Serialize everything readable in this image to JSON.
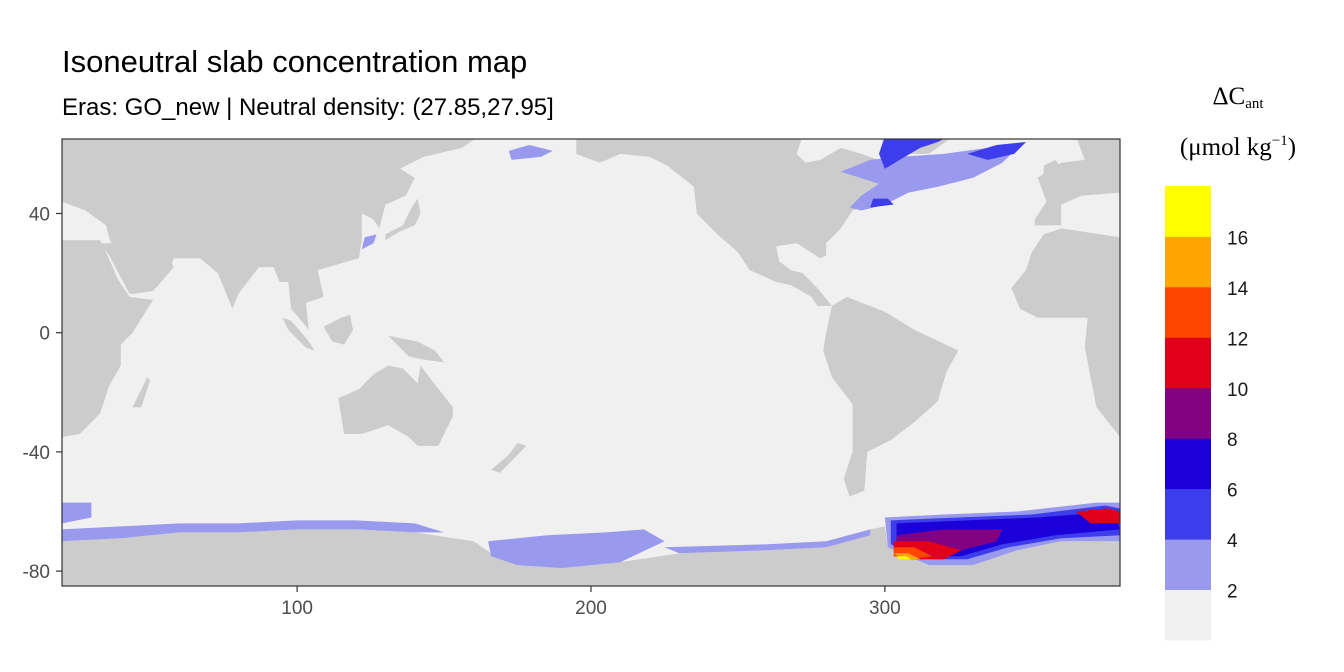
{
  "chart_data": {
    "type": "heatmap",
    "title": "Isoneutral slab concentration map",
    "subtitle": "Eras: GO_new | Neutral density: (27.85,27.95]",
    "xlabel": "",
    "ylabel": "",
    "xlim": [
      20,
      380
    ],
    "ylim": [
      -85,
      65
    ],
    "x_ticks": [
      "100",
      "200",
      "300"
    ],
    "y_ticks": [
      "40",
      "0",
      "-40",
      "-80"
    ],
    "grid": false,
    "legend": {
      "position": "right",
      "title_main": "ΔC",
      "title_sub": "ant",
      "title_units_prefix": "(μmol kg",
      "title_units_sup": "−1",
      "title_units_suffix": ")",
      "breaks": [
        "2",
        "4",
        "6",
        "8",
        "10",
        "12",
        "14",
        "16"
      ],
      "bins": [
        {
          "range": [
            0,
            2
          ],
          "color": "#F0F0F0"
        },
        {
          "range": [
            2,
            4
          ],
          "color": "#9999EE"
        },
        {
          "range": [
            4,
            6
          ],
          "color": "#3D3DEB"
        },
        {
          "range": [
            6,
            8
          ],
          "color": "#1C00D9"
        },
        {
          "range": [
            8,
            10
          ],
          "color": "#820082"
        },
        {
          "range": [
            10,
            12
          ],
          "color": "#E0001C"
        },
        {
          "range": [
            12,
            14
          ],
          "color": "#FF4500"
        },
        {
          "range": [
            14,
            16
          ],
          "color": "#FFA500"
        },
        {
          "range": [
            16,
            18
          ],
          "color": "#FFFF00"
        }
      ]
    },
    "colors": {
      "land": "#CCCCCC",
      "panel_border": "#333333",
      "tick_text": "#4d4d4d"
    },
    "regions": [
      {
        "name": "southern-ocean-indian-sector",
        "bin": "2-4"
      },
      {
        "name": "southern-ocean-pacific-sector",
        "bin": "2-4"
      },
      {
        "name": "ross-sea-shelf",
        "bin": "2-4"
      },
      {
        "name": "weddell-sea",
        "bin": "4-16"
      },
      {
        "name": "north-atlantic-subpolar",
        "bin": "2-6"
      },
      {
        "name": "east-china-sea",
        "bin": "2-4"
      },
      {
        "name": "sea-of-okhotsk",
        "bin": "2-4"
      }
    ]
  }
}
